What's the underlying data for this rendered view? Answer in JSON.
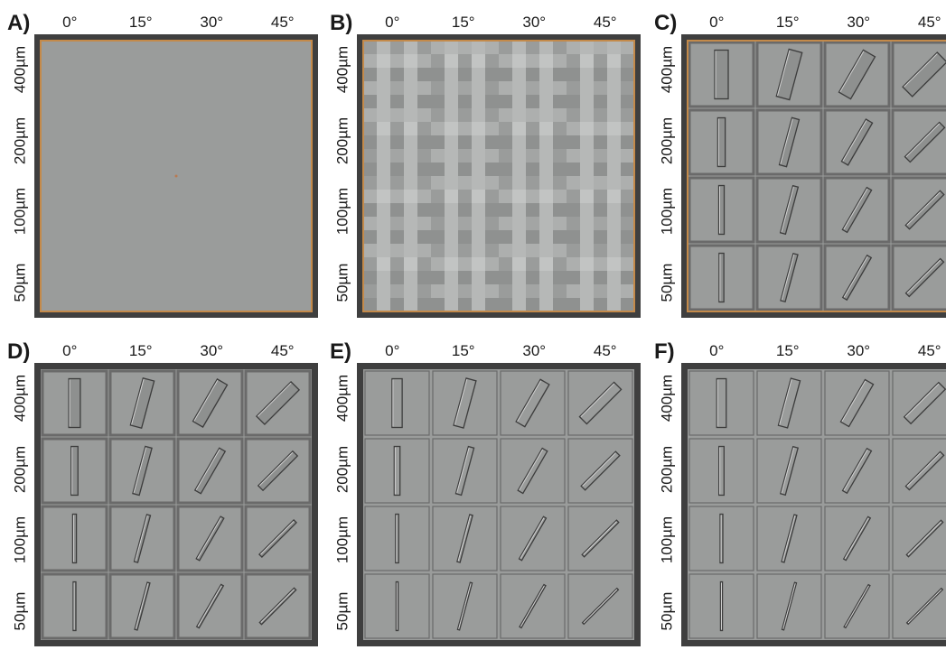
{
  "angles": [
    "0°",
    "15°",
    "30°",
    "45°"
  ],
  "sizes": [
    "400µm",
    "200µm",
    "100µm",
    "50µm"
  ],
  "panels": [
    {
      "label": "A)",
      "style": "uniform"
    },
    {
      "label": "B)",
      "style": "checker"
    },
    {
      "label": "C)",
      "style": "coarse"
    },
    {
      "label": "D)",
      "style": "medium"
    },
    {
      "label": "E)",
      "style": "fine"
    },
    {
      "label": "F)",
      "style": "finest"
    }
  ],
  "colors": {
    "field": "#9a9c9b",
    "frame": "#3f3f3f",
    "orange_border": "#c48a4a",
    "grid_line": "#6a6a6a",
    "stroke_dark": "#3c3c3c",
    "stroke_light": "#d2d2d2"
  }
}
